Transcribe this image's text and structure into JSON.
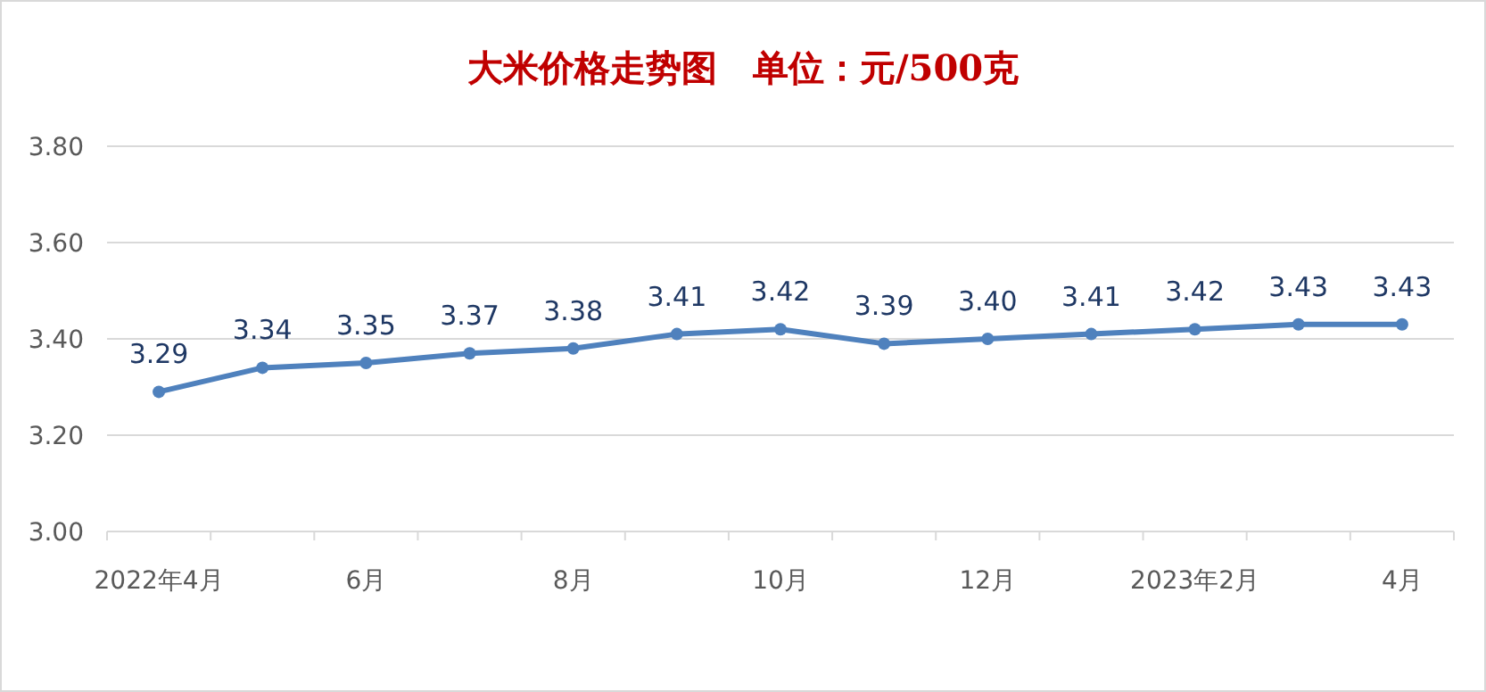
{
  "chart_data": {
    "type": "line",
    "title": "大米价格走势图　单位：元/500克",
    "categories": [
      "2022年4月",
      null,
      "6月",
      null,
      "8月",
      null,
      "10月",
      null,
      "12月",
      null,
      "2023年2月",
      null,
      "4月"
    ],
    "series": [
      {
        "color": "#4f81bd",
        "values": [
          3.29,
          3.34,
          3.35,
          3.37,
          3.38,
          3.41,
          3.42,
          3.39,
          3.4,
          3.41,
          3.42,
          3.43,
          3.43
        ],
        "value_labels": [
          "3.29",
          "3.34",
          "3.35",
          "3.37",
          "3.38",
          "3.41",
          "3.42",
          "3.39",
          "3.40",
          "3.41",
          "3.42",
          "3.43",
          "3.43"
        ]
      }
    ],
    "ylim": [
      3.0,
      3.8
    ],
    "yticks": [
      {
        "value": 3.0,
        "label": "3.00"
      },
      {
        "value": 3.2,
        "label": "3.20"
      },
      {
        "value": 3.4,
        "label": "3.40"
      },
      {
        "value": 3.6,
        "label": "3.60"
      },
      {
        "value": 3.8,
        "label": "3.80"
      }
    ],
    "grid": "y",
    "marker": "circle",
    "line_style": "solid"
  }
}
